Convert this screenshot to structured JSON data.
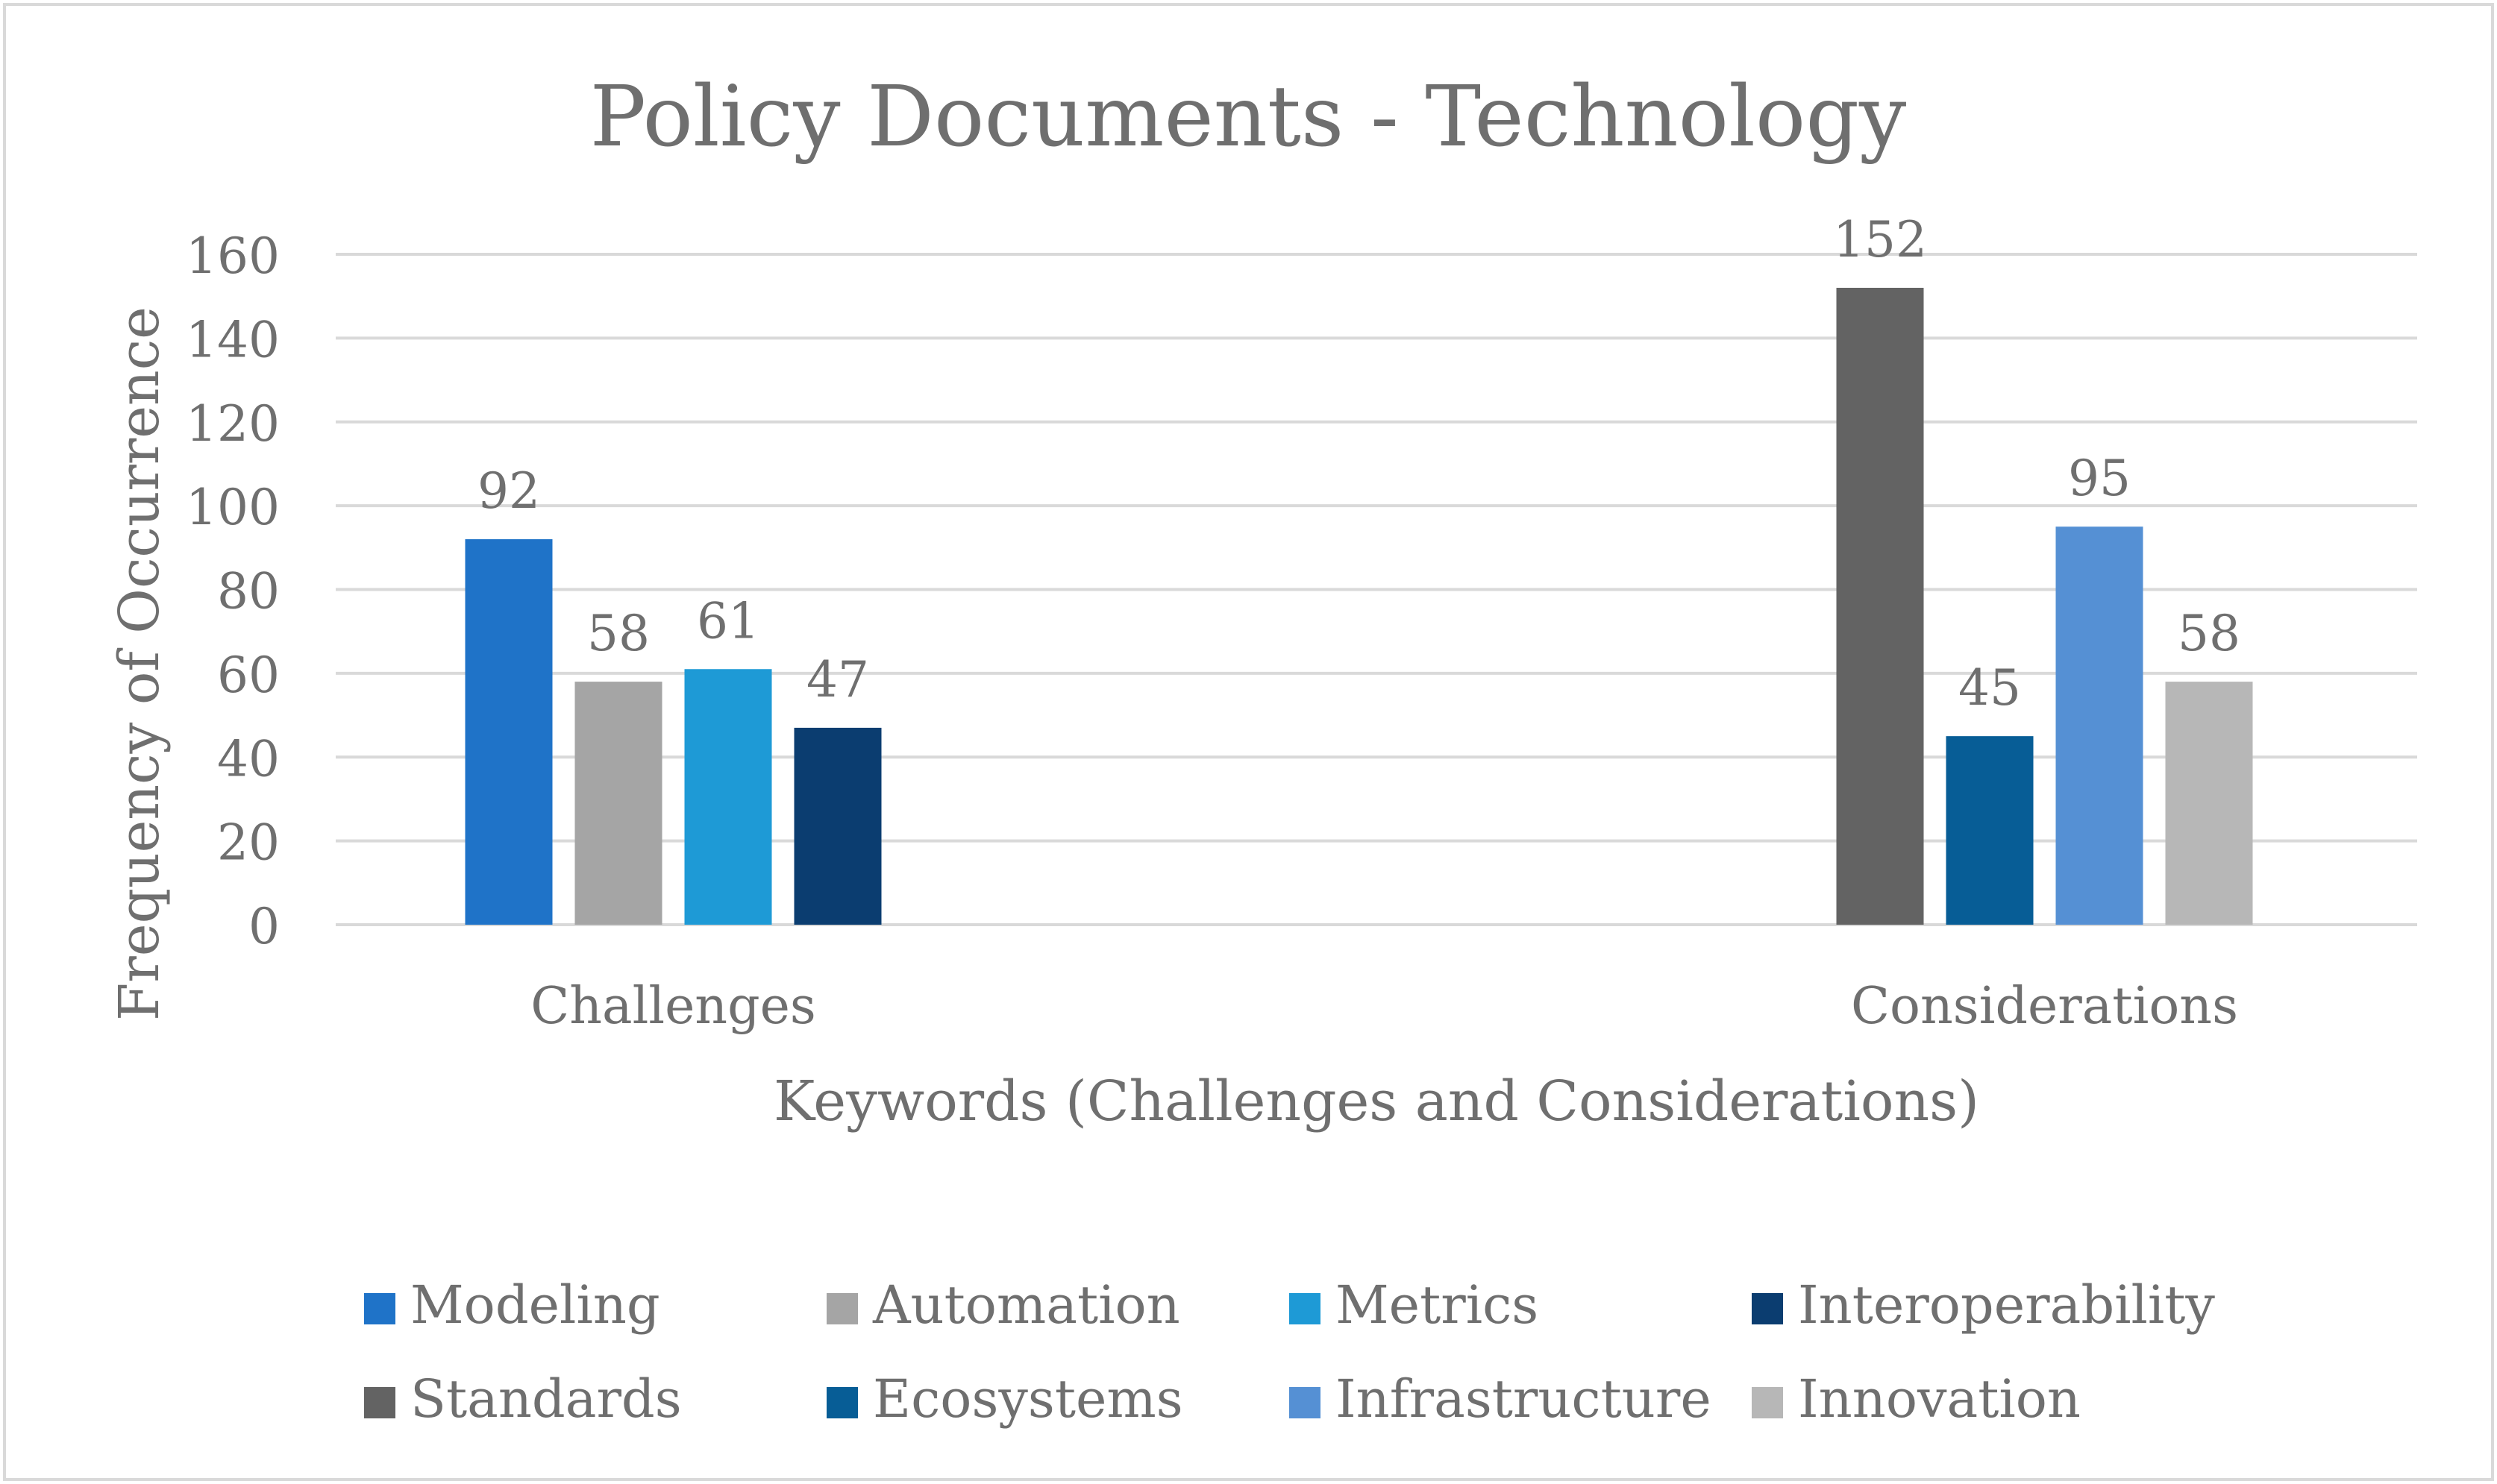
{
  "chart_data": {
    "type": "bar",
    "title": "Policy Documents - Technology",
    "xlabel": "Keywords (Challenges and Considerations)",
    "ylabel": "Frequency of Occurrence",
    "ylim": [
      0,
      160
    ],
    "yticks": [
      0,
      20,
      40,
      60,
      80,
      100,
      120,
      140,
      160
    ],
    "grid": true,
    "legend_position": "bottom",
    "categories": [
      "Challenges",
      "Considerations"
    ],
    "series": [
      {
        "name": "Modeling",
        "color": "#1f73c8",
        "values": [
          92,
          null
        ]
      },
      {
        "name": "Automation",
        "color": "#a5a5a5",
        "values": [
          58,
          null
        ]
      },
      {
        "name": "Metrics",
        "color": "#1e9ad6",
        "values": [
          61,
          null
        ]
      },
      {
        "name": "Interoperability",
        "color": "#0b3d70",
        "values": [
          47,
          null
        ]
      },
      {
        "name": "Standards",
        "color": "#636363",
        "values": [
          null,
          152
        ]
      },
      {
        "name": "Ecosystems",
        "color": "#075d96",
        "values": [
          null,
          45
        ]
      },
      {
        "name": "Infrastructure",
        "color": "#5590d4",
        "values": [
          null,
          95
        ]
      },
      {
        "name": "Innovation",
        "color": "#b7b7b7",
        "values": [
          null,
          58
        ]
      }
    ]
  }
}
